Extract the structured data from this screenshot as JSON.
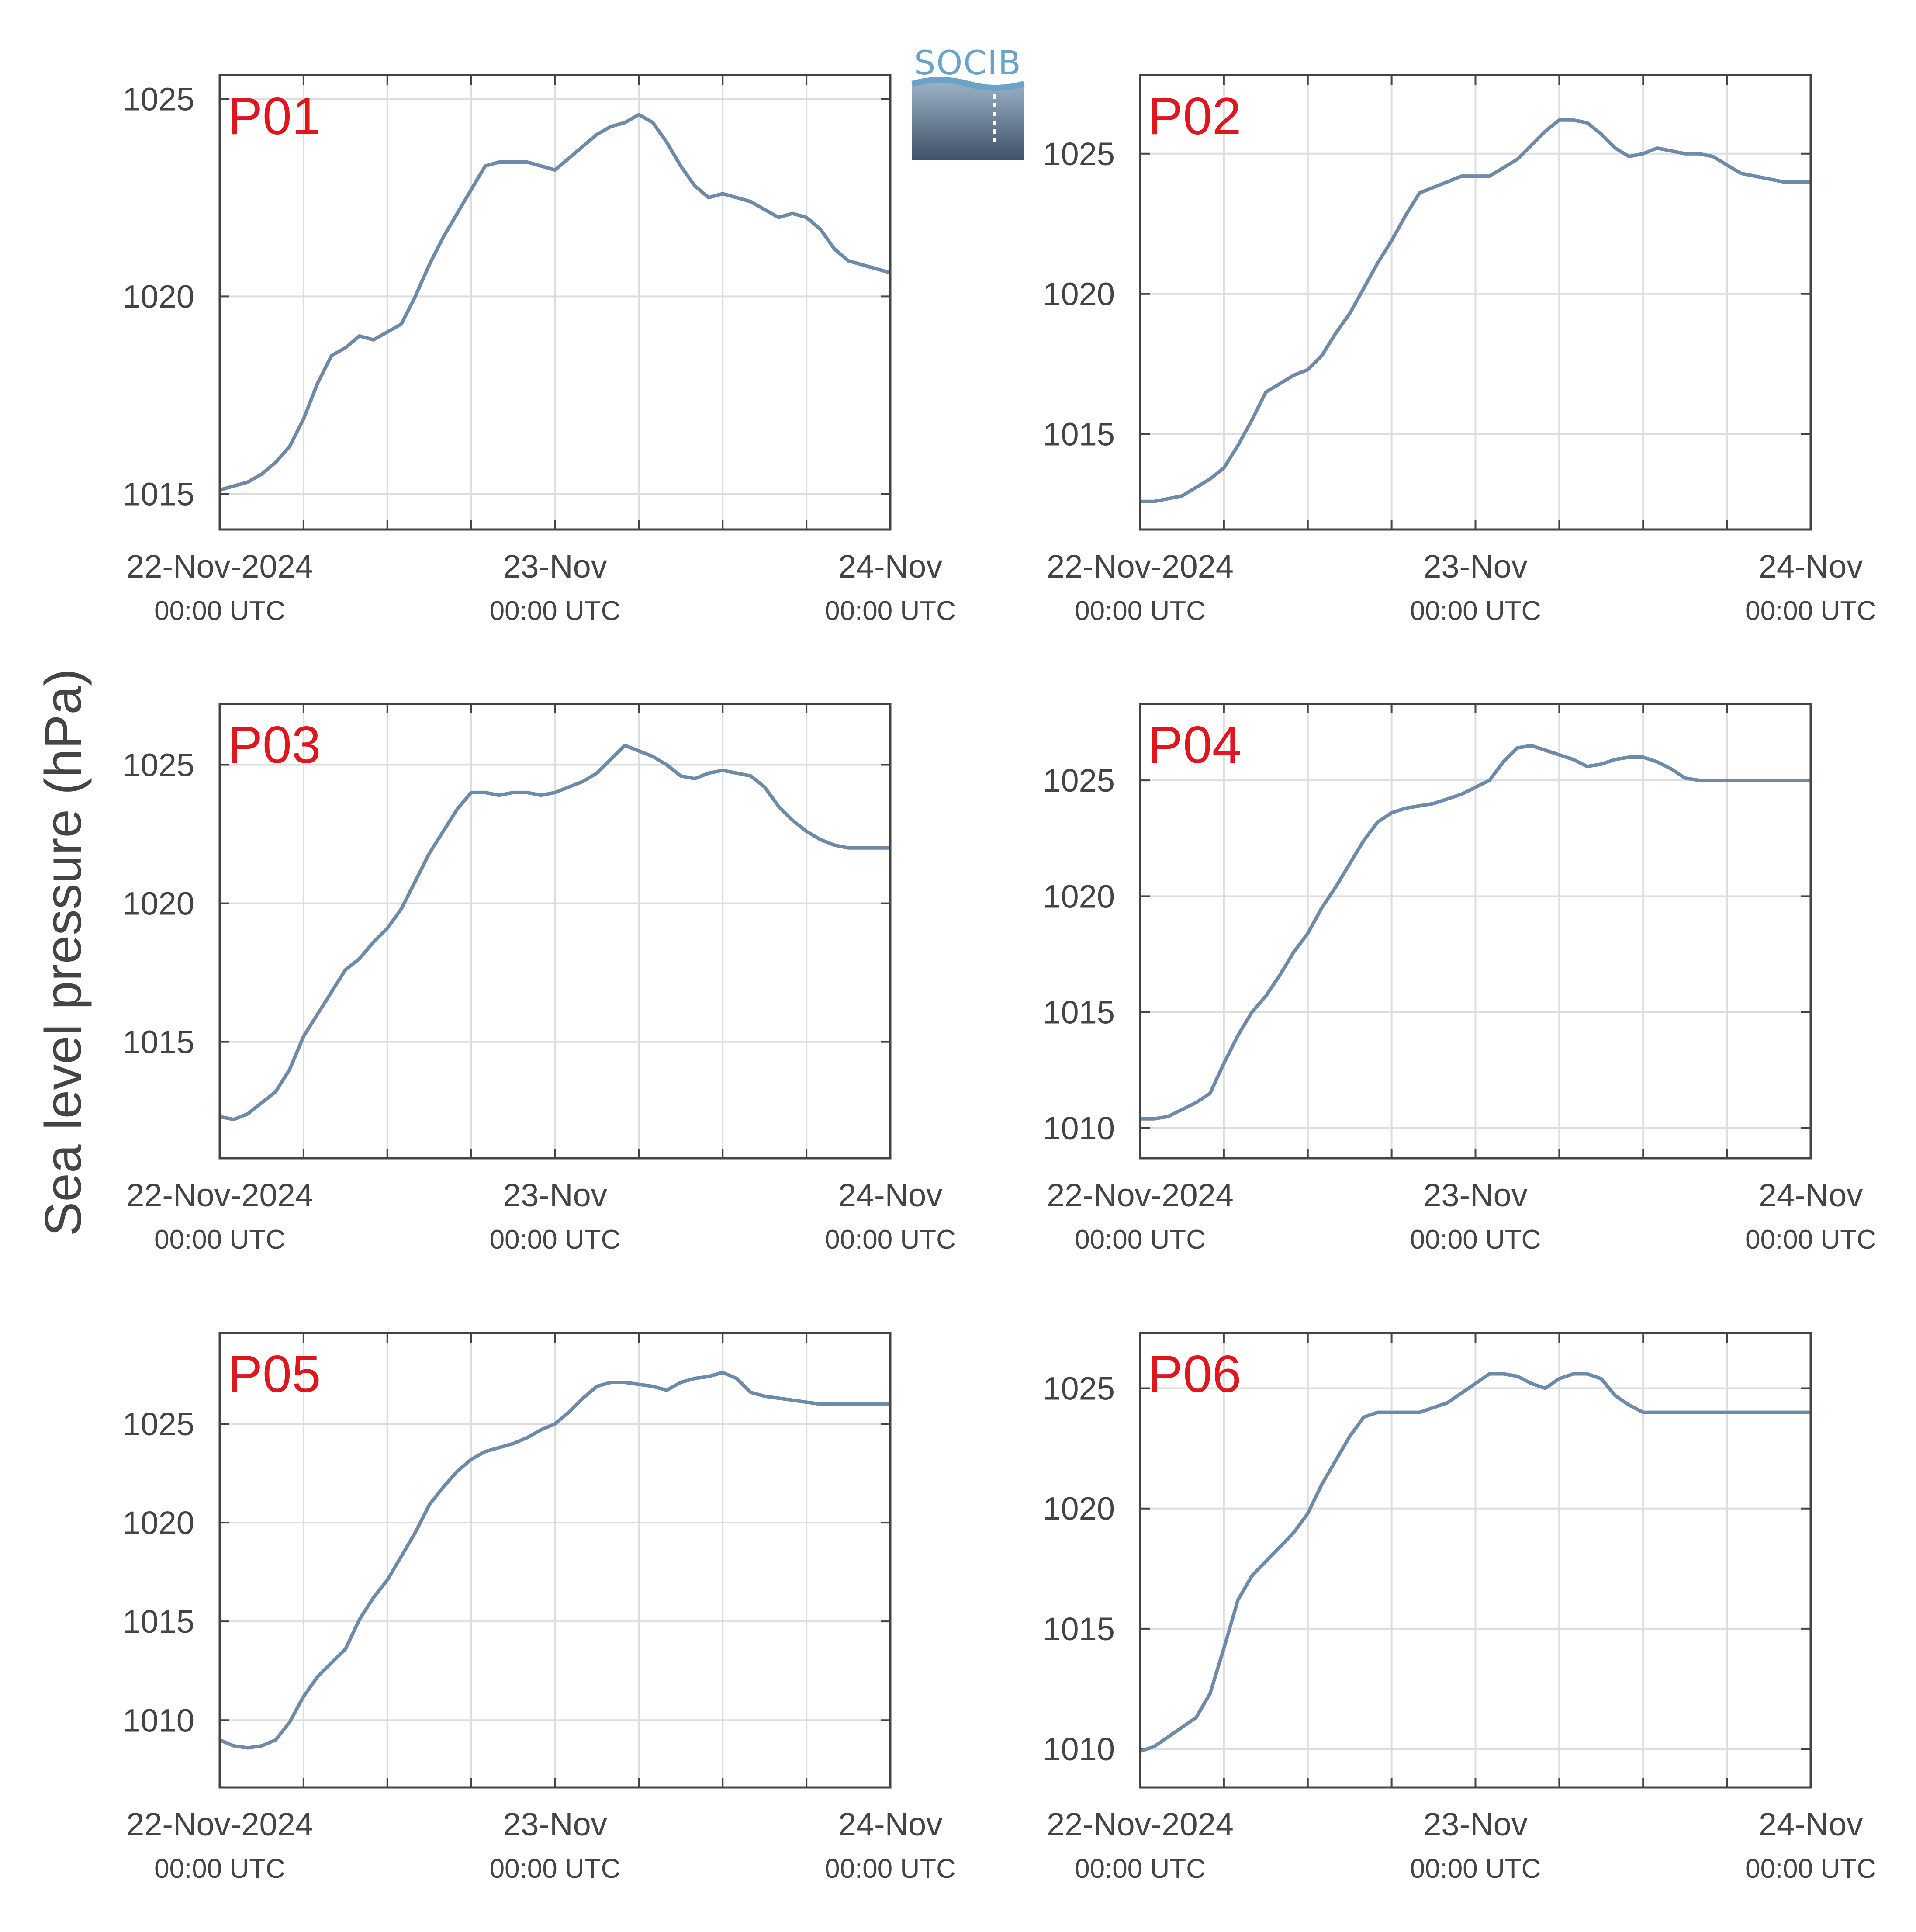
{
  "figure": {
    "ylabel": "Sea level pressure (hPa)",
    "logo_text": "SOCIB",
    "colors": {
      "line": "#6f8aa8",
      "panel_label": "#e0161f",
      "grid": "#dddddd",
      "axis": "#444444",
      "text": "#444444"
    }
  },
  "chart_data": [
    {
      "type": "line",
      "label": "P01",
      "ylim": [
        1014.1,
        1025.6
      ],
      "yticks": [
        1015,
        1020,
        1025
      ],
      "xlim": [
        0,
        48
      ],
      "xticks": [
        {
          "x": 0,
          "label": "22-Nov-2024",
          "sub": "00:00 UTC"
        },
        {
          "x": 24,
          "label": "23-Nov",
          "sub": "00:00 UTC"
        },
        {
          "x": 48,
          "label": "24-Nov",
          "sub": "00:00 UTC"
        }
      ],
      "x": [
        0,
        1,
        2,
        3,
        4,
        5,
        6,
        7,
        8,
        9,
        10,
        11,
        12,
        13,
        14,
        15,
        16,
        17,
        18,
        19,
        20,
        21,
        22,
        23,
        24,
        25,
        26,
        27,
        28,
        29,
        30,
        31,
        32,
        33,
        34,
        35,
        36,
        37,
        38,
        39,
        40,
        41,
        42,
        43,
        44,
        45,
        46,
        47,
        48
      ],
      "y": [
        1015.1,
        1015.2,
        1015.3,
        1015.5,
        1015.8,
        1016.2,
        1016.9,
        1017.8,
        1018.5,
        1018.7,
        1019.0,
        1018.9,
        1019.1,
        1019.3,
        1020.0,
        1020.8,
        1021.5,
        1022.1,
        1022.7,
        1023.3,
        1023.4,
        1023.4,
        1023.4,
        1023.3,
        1023.2,
        1023.5,
        1023.8,
        1024.1,
        1024.3,
        1024.4,
        1024.6,
        1024.4,
        1023.9,
        1023.3,
        1022.8,
        1022.5,
        1022.6,
        1022.5,
        1022.4,
        1022.2,
        1022.0,
        1022.1,
        1022.0,
        1021.7,
        1021.2,
        1020.9,
        1020.8,
        1020.7,
        1020.6
      ]
    },
    {
      "type": "line",
      "label": "P02",
      "ylim": [
        1011.6,
        1027.8
      ],
      "yticks": [
        1015,
        1020,
        1025
      ],
      "xlim": [
        0,
        48
      ],
      "xticks": [
        {
          "x": 0,
          "label": "22-Nov-2024",
          "sub": "00:00 UTC"
        },
        {
          "x": 24,
          "label": "23-Nov",
          "sub": "00:00 UTC"
        },
        {
          "x": 48,
          "label": "24-Nov",
          "sub": "00:00 UTC"
        }
      ],
      "x": [
        0,
        1,
        2,
        3,
        4,
        5,
        6,
        7,
        8,
        9,
        10,
        11,
        12,
        13,
        14,
        15,
        16,
        17,
        18,
        19,
        20,
        21,
        22,
        23,
        24,
        25,
        26,
        27,
        28,
        29,
        30,
        31,
        32,
        33,
        34,
        35,
        36,
        37,
        38,
        39,
        40,
        41,
        42,
        43,
        44,
        45,
        46,
        47,
        48
      ],
      "y": [
        1012.6,
        1012.6,
        1012.7,
        1012.8,
        1013.1,
        1013.4,
        1013.8,
        1014.6,
        1015.5,
        1016.5,
        1016.8,
        1017.1,
        1017.3,
        1017.8,
        1018.6,
        1019.3,
        1020.2,
        1021.1,
        1021.9,
        1022.8,
        1023.6,
        1023.8,
        1024.0,
        1024.2,
        1024.2,
        1024.2,
        1024.5,
        1024.8,
        1025.3,
        1025.8,
        1026.2,
        1026.2,
        1026.1,
        1025.7,
        1025.2,
        1024.9,
        1025.0,
        1025.2,
        1025.1,
        1025.0,
        1025.0,
        1024.9,
        1024.6,
        1024.3,
        1024.2,
        1024.1,
        1024.0,
        1024.0,
        1024.0
      ]
    },
    {
      "type": "line",
      "label": "P03",
      "ylim": [
        1010.8,
        1027.2
      ],
      "yticks": [
        1015,
        1020,
        1025
      ],
      "xlim": [
        0,
        48
      ],
      "xticks": [
        {
          "x": 0,
          "label": "22-Nov-2024",
          "sub": "00:00 UTC"
        },
        {
          "x": 24,
          "label": "23-Nov",
          "sub": "00:00 UTC"
        },
        {
          "x": 48,
          "label": "24-Nov",
          "sub": "00:00 UTC"
        }
      ],
      "x": [
        0,
        1,
        2,
        3,
        4,
        5,
        6,
        7,
        8,
        9,
        10,
        11,
        12,
        13,
        14,
        15,
        16,
        17,
        18,
        19,
        20,
        21,
        22,
        23,
        24,
        25,
        26,
        27,
        28,
        29,
        30,
        31,
        32,
        33,
        34,
        35,
        36,
        37,
        38,
        39,
        40,
        41,
        42,
        43,
        44,
        45,
        46,
        47,
        48
      ],
      "y": [
        1012.3,
        1012.2,
        1012.4,
        1012.8,
        1013.2,
        1014.0,
        1015.2,
        1016.0,
        1016.8,
        1017.6,
        1018.0,
        1018.6,
        1019.1,
        1019.8,
        1020.8,
        1021.8,
        1022.6,
        1023.4,
        1024.0,
        1024.0,
        1023.9,
        1024.0,
        1024.0,
        1023.9,
        1024.0,
        1024.2,
        1024.4,
        1024.7,
        1025.2,
        1025.7,
        1025.5,
        1025.3,
        1025.0,
        1024.6,
        1024.5,
        1024.7,
        1024.8,
        1024.7,
        1024.6,
        1024.2,
        1023.5,
        1023.0,
        1022.6,
        1022.3,
        1022.1,
        1022.0,
        1022.0,
        1022.0,
        1022.0
      ]
    },
    {
      "type": "line",
      "label": "P04",
      "ylim": [
        1008.7,
        1028.3
      ],
      "yticks": [
        1010,
        1015,
        1020,
        1025
      ],
      "xlim": [
        0,
        48
      ],
      "xticks": [
        {
          "x": 0,
          "label": "22-Nov-2024",
          "sub": "00:00 UTC"
        },
        {
          "x": 24,
          "label": "23-Nov",
          "sub": "00:00 UTC"
        },
        {
          "x": 48,
          "label": "24-Nov",
          "sub": "00:00 UTC"
        }
      ],
      "x": [
        0,
        1,
        2,
        3,
        4,
        5,
        6,
        7,
        8,
        9,
        10,
        11,
        12,
        13,
        14,
        15,
        16,
        17,
        18,
        19,
        20,
        21,
        22,
        23,
        24,
        25,
        26,
        27,
        28,
        29,
        30,
        31,
        32,
        33,
        34,
        35,
        36,
        37,
        38,
        39,
        40,
        41,
        42,
        43,
        44,
        45,
        46,
        47,
        48
      ],
      "y": [
        1010.4,
        1010.4,
        1010.5,
        1010.8,
        1011.1,
        1011.5,
        1012.8,
        1014.0,
        1015.0,
        1015.7,
        1016.6,
        1017.6,
        1018.4,
        1019.5,
        1020.4,
        1021.4,
        1022.4,
        1023.2,
        1023.6,
        1023.8,
        1023.9,
        1024.0,
        1024.2,
        1024.4,
        1024.7,
        1025.0,
        1025.8,
        1026.4,
        1026.5,
        1026.3,
        1026.1,
        1025.9,
        1025.6,
        1025.7,
        1025.9,
        1026.0,
        1026.0,
        1025.8,
        1025.5,
        1025.1,
        1025.0,
        1025.0,
        1025.0,
        1025.0,
        1025.0,
        1025.0,
        1025.0,
        1025.0,
        1025.0
      ]
    },
    {
      "type": "line",
      "label": "P05",
      "ylim": [
        1006.6,
        1029.6
      ],
      "yticks": [
        1010,
        1015,
        1020,
        1025
      ],
      "xlim": [
        0,
        48
      ],
      "xticks": [
        {
          "x": 0,
          "label": "22-Nov-2024",
          "sub": "00:00 UTC"
        },
        {
          "x": 24,
          "label": "23-Nov",
          "sub": "00:00 UTC"
        },
        {
          "x": 48,
          "label": "24-Nov",
          "sub": "00:00 UTC"
        }
      ],
      "x": [
        0,
        1,
        2,
        3,
        4,
        5,
        6,
        7,
        8,
        9,
        10,
        11,
        12,
        13,
        14,
        15,
        16,
        17,
        18,
        19,
        20,
        21,
        22,
        23,
        24,
        25,
        26,
        27,
        28,
        29,
        30,
        31,
        32,
        33,
        34,
        35,
        36,
        37,
        38,
        39,
        40,
        41,
        42,
        43,
        44,
        45,
        46,
        47,
        48
      ],
      "y": [
        1009.0,
        1008.7,
        1008.6,
        1008.7,
        1009.0,
        1009.9,
        1011.2,
        1012.2,
        1012.9,
        1013.6,
        1015.1,
        1016.2,
        1017.1,
        1018.3,
        1019.5,
        1020.9,
        1021.8,
        1022.6,
        1023.2,
        1023.6,
        1023.8,
        1024.0,
        1024.3,
        1024.7,
        1025.0,
        1025.6,
        1026.3,
        1026.9,
        1027.1,
        1027.1,
        1027.0,
        1026.9,
        1026.7,
        1027.1,
        1027.3,
        1027.4,
        1027.6,
        1027.3,
        1026.6,
        1026.4,
        1026.3,
        1026.2,
        1026.1,
        1026.0,
        1026.0,
        1026.0,
        1026.0,
        1026.0,
        1026.0
      ]
    },
    {
      "type": "line",
      "label": "P06",
      "ylim": [
        1008.4,
        1027.3
      ],
      "yticks": [
        1010,
        1015,
        1020,
        1025
      ],
      "xlim": [
        0,
        48
      ],
      "xticks": [
        {
          "x": 0,
          "label": "22-Nov-2024",
          "sub": "00:00 UTC"
        },
        {
          "x": 24,
          "label": "23-Nov",
          "sub": "00:00 UTC"
        },
        {
          "x": 48,
          "label": "24-Nov",
          "sub": "00:00 UTC"
        }
      ],
      "x": [
        0,
        1,
        2,
        3,
        4,
        5,
        6,
        7,
        8,
        9,
        10,
        11,
        12,
        13,
        14,
        15,
        16,
        17,
        18,
        19,
        20,
        21,
        22,
        23,
        24,
        25,
        26,
        27,
        28,
        29,
        30,
        31,
        32,
        33,
        34,
        35,
        36,
        37,
        38,
        39,
        40,
        41,
        42,
        43,
        44,
        45,
        46,
        47,
        48
      ],
      "y": [
        1009.9,
        1010.1,
        1010.5,
        1010.9,
        1011.3,
        1012.3,
        1014.2,
        1016.2,
        1017.2,
        1017.8,
        1018.4,
        1019.0,
        1019.8,
        1021.0,
        1022.0,
        1023.0,
        1023.8,
        1024.0,
        1024.0,
        1024.0,
        1024.0,
        1024.2,
        1024.4,
        1024.8,
        1025.2,
        1025.6,
        1025.6,
        1025.5,
        1025.2,
        1025.0,
        1025.4,
        1025.6,
        1025.6,
        1025.4,
        1024.7,
        1024.3,
        1024.0,
        1024.0,
        1024.0,
        1024.0,
        1024.0,
        1024.0,
        1024.0,
        1024.0,
        1024.0,
        1024.0,
        1024.0,
        1024.0,
        1024.0
      ]
    }
  ]
}
